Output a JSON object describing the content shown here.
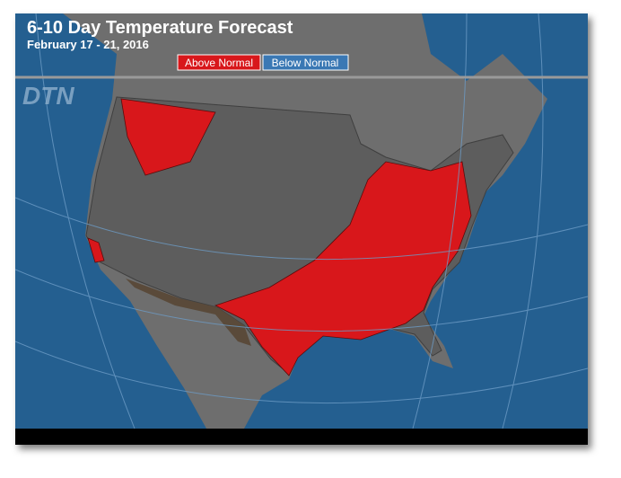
{
  "header": {
    "title": "6-10 Day Temperature Forecast",
    "subtitle": "February 17 - 21, 2016"
  },
  "legend": {
    "items": [
      "Above Normal",
      "Below Normal"
    ]
  },
  "logo": "DTN"
}
